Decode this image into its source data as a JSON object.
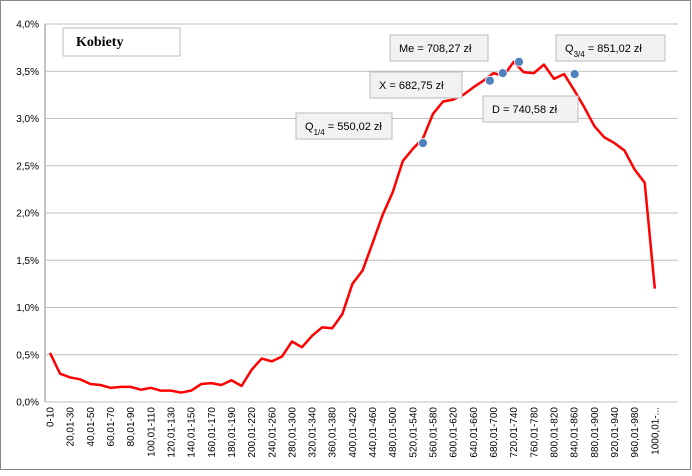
{
  "chart_data": {
    "type": "line",
    "box_title": "Kobiety",
    "categories": [
      "0-10",
      null,
      "20,01-30",
      null,
      "40,01-50",
      null,
      "60,01-70",
      null,
      "80,01-90",
      null,
      "100,01-110",
      null,
      "120,01-130",
      null,
      "140,01-150",
      null,
      "160,01-170",
      null,
      "180,01-190",
      null,
      "200,01-220",
      null,
      "240,01-260",
      null,
      "280,01-300",
      null,
      "320,01-340",
      null,
      "360,01-380",
      null,
      "400,01-420",
      null,
      "440,01-460",
      null,
      "480,01-500",
      null,
      "520,01-540",
      null,
      "560,01-580",
      null,
      "600,01-620",
      null,
      "640,01-660",
      null,
      "680,01-700",
      null,
      "720,01-740",
      null,
      "760,01-780",
      null,
      "800,01-820",
      null,
      "840,01-860",
      null,
      "880,01-900",
      null,
      "920,01-940",
      null,
      "960,01-980",
      null,
      "1000,01-..."
    ],
    "series": [
      {
        "color": "#ff0000",
        "values": [
          0.52,
          0.3,
          0.26,
          0.24,
          0.19,
          0.18,
          0.15,
          0.16,
          0.16,
          0.13,
          0.15,
          0.12,
          0.12,
          0.1,
          0.12,
          0.19,
          0.2,
          0.18,
          0.23,
          0.17,
          0.34,
          0.46,
          0.43,
          0.48,
          0.64,
          0.58,
          0.7,
          0.79,
          0.78,
          0.93,
          1.25,
          1.39,
          1.68,
          1.98,
          2.22,
          2.55,
          2.68,
          2.79,
          3.05,
          3.18,
          3.2,
          3.25,
          3.33,
          3.4,
          3.48,
          3.45,
          3.6,
          3.49,
          3.48,
          3.57,
          3.42,
          3.47,
          3.3,
          3.12,
          2.92,
          2.8,
          2.74,
          2.66,
          2.46,
          2.32,
          1.2
        ]
      }
    ],
    "markers": [
      {
        "x": 550.02,
        "y": 2.74,
        "label": [
          "Q",
          "1/4",
          " = 550,02 zł"
        ]
      },
      {
        "x": 682.75,
        "y": 3.4,
        "label": [
          "X = 682,75 zł"
        ]
      },
      {
        "x": 708.27,
        "y": 3.48,
        "label": [
          "Me = 708,27 zł"
        ]
      },
      {
        "x": 740.58,
        "y": 3.6,
        "label": [
          "D = 740,58 zł"
        ]
      },
      {
        "x": 851.02,
        "y": 3.47,
        "label": [
          "Q",
          "3/4",
          " = 851,02 zł"
        ]
      }
    ],
    "marker_color": "#4f81bd",
    "ylim": [
      0,
      4
    ],
    "yticks": [
      {
        "value": 0,
        "label": "0,0%"
      },
      {
        "value": 0.5,
        "label": "0,5%"
      },
      {
        "value": 1,
        "label": "1,0%"
      },
      {
        "value": 1.5,
        "label": "1,5%"
      },
      {
        "value": 2,
        "label": "2,0%"
      },
      {
        "value": 2.5,
        "label": "2,5%"
      },
      {
        "value": 3,
        "label": "3,0%"
      },
      {
        "value": 3.5,
        "label": "3,5%"
      },
      {
        "value": 4,
        "label": "4,0%"
      }
    ],
    "grid": true
  }
}
